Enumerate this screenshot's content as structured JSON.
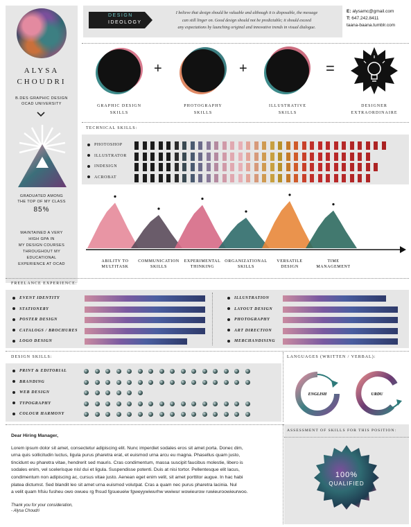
{
  "profile": {
    "first_name": "ALYSA",
    "last_name": "CHOUDRI",
    "degree": "B.DES GRAPHIC DESIGN",
    "school": "OCAD UNIVERSITY",
    "graduated_line1": "GRADUATED AMONG",
    "graduated_line2": "THE TOP OF MY CLASS",
    "percent": "85%",
    "gpa_lines": [
      "MAINTAINED A VERY",
      "HIGH GPA IN",
      "MY DESIGN COURSES",
      "THROUGHOUT MY",
      "EDUCATIONAL",
      "EXPERIENCE AT OCAD"
    ]
  },
  "ideology": {
    "label_line1": "DESIGN",
    "label_line2": "IDEOLOGY",
    "text_line1": "I believe that design should be valuable and although it is disposable, the message",
    "text_line2": "can still linger on. Good design should not be predictable; it should exceed",
    "text_line3": "any expectations by launching original and innovative trends in visual dialogue."
  },
  "contact": {
    "email_label": "E:",
    "email": "alysamc@gmail.com",
    "phone_label": "T:",
    "phone": "647.242.8411",
    "site": "taana-baana.tumblr.com"
  },
  "equation": {
    "items": [
      {
        "line1": "GRAPHIC DESIGN",
        "line2": "SKILLS"
      },
      {
        "line1": "PHOTOGRAPHY",
        "line2": "SKILLS"
      },
      {
        "line1": "ILLUSTRATIVE",
        "line2": "SKILLS"
      },
      {
        "line1": "DESIGNER",
        "line2": "EXTRAORDINAIRE"
      }
    ],
    "plus": "+",
    "equals": "="
  },
  "technical": {
    "title": "TECHNICAL SKILLS:",
    "rows": [
      {
        "label": "PHOTOSHOP",
        "filled": 32
      },
      {
        "label": "ILLUSTRATOR",
        "filled": 30
      },
      {
        "label": "INDESIGN",
        "filled": 31
      },
      {
        "label": "ACROBAT",
        "filled": 30
      }
    ]
  },
  "chart_data": {
    "type": "area",
    "categories": [
      "ABILITY TO MULTITASK",
      "COMMUNICATION SKILLS",
      "EXPERIMENTAL THINKING",
      "ORGANIZATIONAL SKILLS",
      "VERSATILE DESIGN",
      "TIME MANAGEMENT"
    ],
    "category_lines": [
      [
        "ABILITY TO",
        "MULTITASK"
      ],
      [
        "COMMUNICATION",
        "SKILLS"
      ],
      [
        "EXPERIMENTAL",
        "THINKING"
      ],
      [
        "ORGANIZATIONAL",
        "SKILLS"
      ],
      [
        "VERSATILE",
        "DESIGN"
      ],
      [
        "TIME",
        "MANAGEMENT"
      ]
    ],
    "values": [
      82,
      60,
      78,
      55,
      85,
      68
    ],
    "ylim": [
      0,
      100
    ],
    "colors": [
      "#e58a9a",
      "#5a4a5a",
      "#d66a86",
      "#2f6b6a",
      "#e8873a",
      "#2e6a5f"
    ]
  },
  "freelance": {
    "title": "FREELANCE EXPERIENCE:",
    "left": [
      {
        "label": "EVENT IDENTITY",
        "value": 1.0
      },
      {
        "label": "STATIONERY",
        "value": 1.0
      },
      {
        "label": "POSTER DESIGN",
        "value": 1.0
      },
      {
        "label": "CATALOGS / BROCHURES",
        "value": 1.0
      },
      {
        "label": "LOGO DESIGN",
        "value": 0.85
      }
    ],
    "right": [
      {
        "label": "ILLUSTRATION",
        "value": 0.9
      },
      {
        "label": "LAYOUT DESIGN",
        "value": 1.0
      },
      {
        "label": "PHOTOGRAPHY",
        "value": 1.0
      },
      {
        "label": "ART DIRECTION",
        "value": 1.0
      },
      {
        "label": "MERCHANDISING",
        "value": 1.0
      }
    ]
  },
  "design_skills": {
    "title": "DESIGN SKILLS:",
    "max_dots": 16,
    "rows": [
      {
        "label": "PRINT & EDITORIAL",
        "dots": 16
      },
      {
        "label": "BRANDING",
        "dots": 16
      },
      {
        "label": "WEB DESIGN",
        "dots": 6
      },
      {
        "label": "TYPOGRAPHY",
        "dots": 16
      },
      {
        "label": "COLOUR HARMONY",
        "dots": 16
      }
    ]
  },
  "languages": {
    "title": "LANGUAGES (WRITTEN / VERBAL):",
    "items": [
      "ENGLISH",
      "URDU"
    ]
  },
  "letter": {
    "salutation": "Dear Hiring Manager,",
    "body_lines": [
      "Lorem ipsum dolor sit amet, consectetur adipiscing elit. Nunc imperdiet sodales eros sit amet porta. Donec dim,",
      "urna quis sollicitudin luctus, ligula purus pharetra erat, et euismod urna arcu eu magna. Phasellus quam justo,",
      "tincidunt eu pharetra vitae, hendrerit sed mauris. Cras condimentum, massa suscipit faucibus molestie, libero is",
      "sodales enim, vel scelerisque nisl dui et ligula. Suspendisse potenti. Duis at nisi tortor. Pellentesque elit lacus,",
      "condimentum non adipiscing ac, cursus vitae justo. Aenean eget enim velit, sit amet porttitor augue. In hac habi",
      "platea dictumst. Sed blandit leo sit amet urna euismod volutpat. Cras a quam nec purus pharetra lacinia. Nul",
      "a velit quam hfsiu fusheu owo owueu rg fhsud fgsueueiw fgweyywiwurhw wwiwur wowieurow ruwieuroowieurwoo."
    ],
    "closing": "Thank you for your consideration,",
    "signature": "- Alysa Choudri"
  },
  "assessment": {
    "title": "ASSESSMENT OF SKILLS FOR THIS POSITION:",
    "percent": "100%",
    "label": "QUALIFIED"
  },
  "icons": {
    "chevron": "chevron-down-icon",
    "lightbulb": "lightbulb-icon",
    "seal": "seal-icon"
  }
}
